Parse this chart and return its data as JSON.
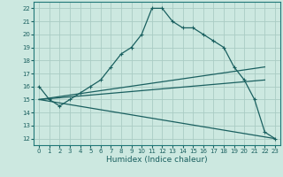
{
  "xlabel": "Humidex (Indice chaleur)",
  "bg_color": "#cce8e0",
  "grid_color": "#aaccc4",
  "line_color": "#1a6060",
  "spine_color": "#207878",
  "xlim": [
    -0.5,
    23.5
  ],
  "ylim": [
    11.5,
    22.5
  ],
  "xticks": [
    0,
    1,
    2,
    3,
    4,
    5,
    6,
    7,
    8,
    9,
    10,
    11,
    12,
    13,
    14,
    15,
    16,
    17,
    18,
    19,
    20,
    21,
    22,
    23
  ],
  "yticks": [
    12,
    13,
    14,
    15,
    16,
    17,
    18,
    19,
    20,
    21,
    22
  ],
  "curve1_x": [
    0,
    1,
    2,
    3,
    4,
    5,
    6,
    7,
    8,
    9,
    10,
    11,
    12,
    13,
    14,
    15,
    16,
    17,
    18,
    19,
    20,
    21,
    22,
    23
  ],
  "curve1_y": [
    16.0,
    15.0,
    14.5,
    15.0,
    15.5,
    16.0,
    16.5,
    17.5,
    18.5,
    19.0,
    20.0,
    22.0,
    22.0,
    21.0,
    20.5,
    20.5,
    20.0,
    19.5,
    19.0,
    17.5,
    16.5,
    15.0,
    12.5,
    12.0
  ],
  "line2_x": [
    0,
    22
  ],
  "line2_y": [
    15.0,
    17.5
  ],
  "line3_x": [
    0,
    22
  ],
  "line3_y": [
    15.0,
    16.5
  ],
  "line4_x": [
    0,
    23
  ],
  "line4_y": [
    15.0,
    12.0
  ],
  "tick_fontsize": 5.0,
  "xlabel_fontsize": 6.5,
  "linewidth": 0.9,
  "marker_size": 3.0
}
